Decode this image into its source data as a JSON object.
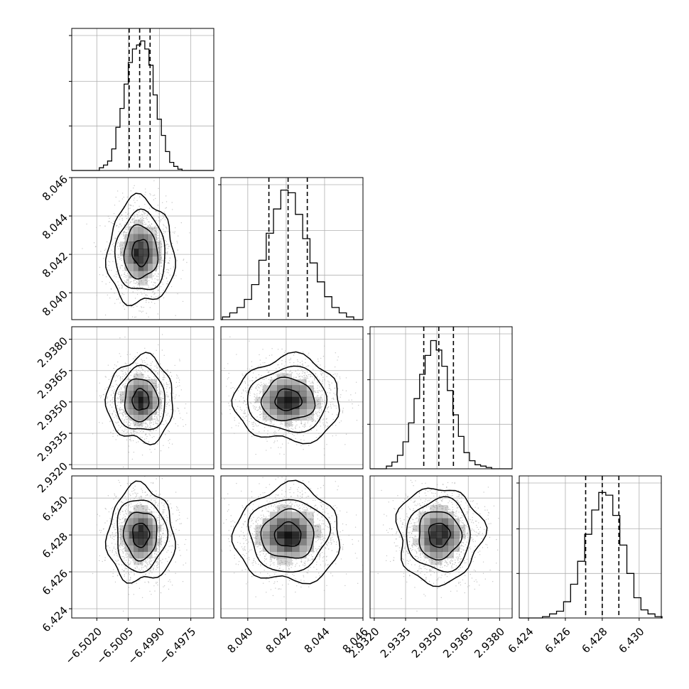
{
  "chart_data": {
    "type": "corner",
    "parameters": [
      {
        "ticks": [
          -6.502,
          -6.5005,
          -6.499,
          -6.4975
        ],
        "tick_labels": [
          "−6.5020",
          "−6.5005",
          "−6.4990",
          "−6.4975"
        ],
        "range": [
          -6.5032,
          -6.4964
        ],
        "mean": -6.4999,
        "sigma": 0.00055,
        "quantiles": [
          -6.50045,
          -6.49995,
          -6.49945
        ]
      },
      {
        "ticks": [
          8.04,
          8.042,
          8.044,
          8.046
        ],
        "tick_labels": [
          "8.040",
          "8.042",
          "8.044",
          "8.046"
        ],
        "range": [
          8.0386,
          8.046
        ],
        "mean": 8.0421,
        "sigma": 0.00095,
        "quantiles": [
          8.0411,
          8.0421,
          8.0431
        ]
      },
      {
        "ticks": [
          2.932,
          2.9335,
          2.935,
          2.9365,
          2.938
        ],
        "tick_labels": [
          "2.9320",
          "2.9335",
          "2.9350",
          "2.9365",
          "2.9380"
        ],
        "range": [
          2.9318,
          2.9386
        ],
        "mean": 2.9351,
        "sigma": 0.0007,
        "quantiles": [
          2.93437,
          2.93509,
          2.93579
        ]
      },
      {
        "ticks": [
          6.424,
          6.426,
          6.428,
          6.43
        ],
        "tick_labels": [
          "6.424",
          "6.426",
          "6.428",
          "6.430"
        ],
        "range": [
          6.4235,
          6.4312
        ],
        "mean": 6.428,
        "sigma": 0.0009,
        "quantiles": [
          6.4271,
          6.428,
          6.4289
        ]
      }
    ],
    "histograms": [
      [
        0.02,
        0.04,
        0.07,
        0.16,
        0.32,
        0.46,
        0.64,
        0.8,
        0.9,
        0.93,
        0.96,
        0.9,
        0.78,
        0.56,
        0.38,
        0.26,
        0.14,
        0.06,
        0.03,
        0.01
      ],
      [
        0.02,
        0.05,
        0.09,
        0.15,
        0.26,
        0.44,
        0.64,
        0.82,
        0.96,
        0.94,
        0.78,
        0.6,
        0.42,
        0.28,
        0.17,
        0.09,
        0.05,
        0.02
      ],
      [
        0.02,
        0.05,
        0.1,
        0.2,
        0.34,
        0.52,
        0.7,
        0.84,
        0.95,
        0.88,
        0.76,
        0.58,
        0.4,
        0.24,
        0.12,
        0.06,
        0.03,
        0.02,
        0.01
      ],
      [
        0.01,
        0.03,
        0.05,
        0.12,
        0.25,
        0.42,
        0.62,
        0.8,
        0.93,
        0.91,
        0.76,
        0.54,
        0.33,
        0.15,
        0.06,
        0.03,
        0.01
      ]
    ],
    "pair_correlations": [
      {
        "row": 1,
        "col": 0,
        "r": 0.0
      },
      {
        "row": 2,
        "col": 0,
        "r": 0.0
      },
      {
        "row": 2,
        "col": 1,
        "r": 0.0
      },
      {
        "row": 3,
        "col": 0,
        "r": 0.0
      },
      {
        "row": 3,
        "col": 1,
        "r": 0.0
      },
      {
        "row": 3,
        "col": 2,
        "r": 0.0
      }
    ],
    "contour_levels_sigma": [
      0.5,
      1.0,
      1.5,
      2.0
    ],
    "grid": true,
    "colors": {
      "line": "#000000",
      "points": "#b0b0b0",
      "grid": "#b0b0b0",
      "density": "#000000"
    }
  }
}
